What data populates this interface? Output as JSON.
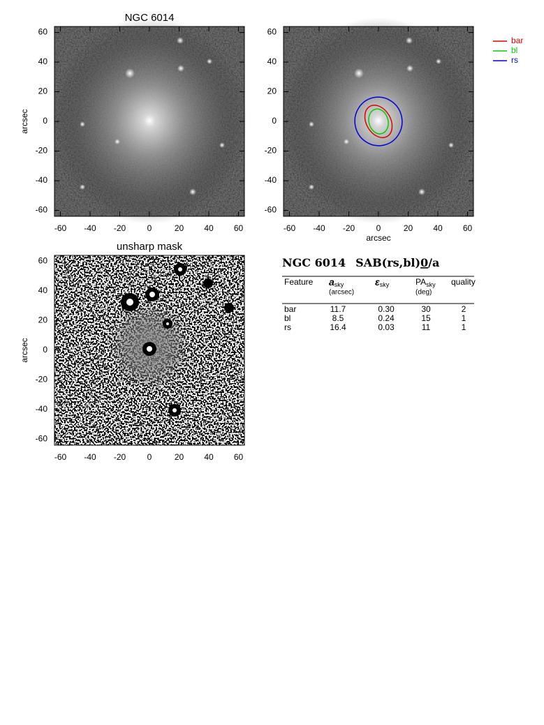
{
  "panels": [
    {
      "title": "NGC 6014",
      "ylabel": "arcsec"
    },
    {
      "xlabel": "arcsec"
    },
    {
      "title": "unsharp mask",
      "ylabel": "arcsec"
    }
  ],
  "axis": {
    "lim": [
      -64,
      64
    ],
    "ticks": [
      -60,
      -40,
      -20,
      0,
      20,
      40,
      60
    ]
  },
  "legend": [
    {
      "name": "bar",
      "color": "#e00000"
    },
    {
      "name": "bl",
      "color": "#00d000"
    },
    {
      "name": "rs",
      "color": "#0000e0"
    }
  ],
  "classification": {
    "name": "NGC 6014",
    "type": "SAB(rs,bl)",
    "stage": "0",
    "rest": "/a"
  },
  "table": {
    "headers": [
      {
        "text": "Feature"
      },
      {
        "text": "a",
        "sub": "sky",
        "unit": "(arcsec)"
      },
      {
        "text": "ε",
        "sub": "sky"
      },
      {
        "text": "PA",
        "sub": "sky",
        "unit": "(deg)"
      },
      {
        "text": "quality"
      }
    ],
    "rows": [
      {
        "feature": "bar",
        "a": 11.7,
        "e": {
          "value": 0.3,
          "label": "0.30"
        },
        "pa": 30,
        "quality": 2
      },
      {
        "feature": "bl",
        "a": 8.5,
        "e": 0.24,
        "pa": 15,
        "quality": 1
      },
      {
        "feature": "rs",
        "a": 16.4,
        "e": 0.03,
        "pa": 11,
        "quality": 1
      }
    ]
  }
}
